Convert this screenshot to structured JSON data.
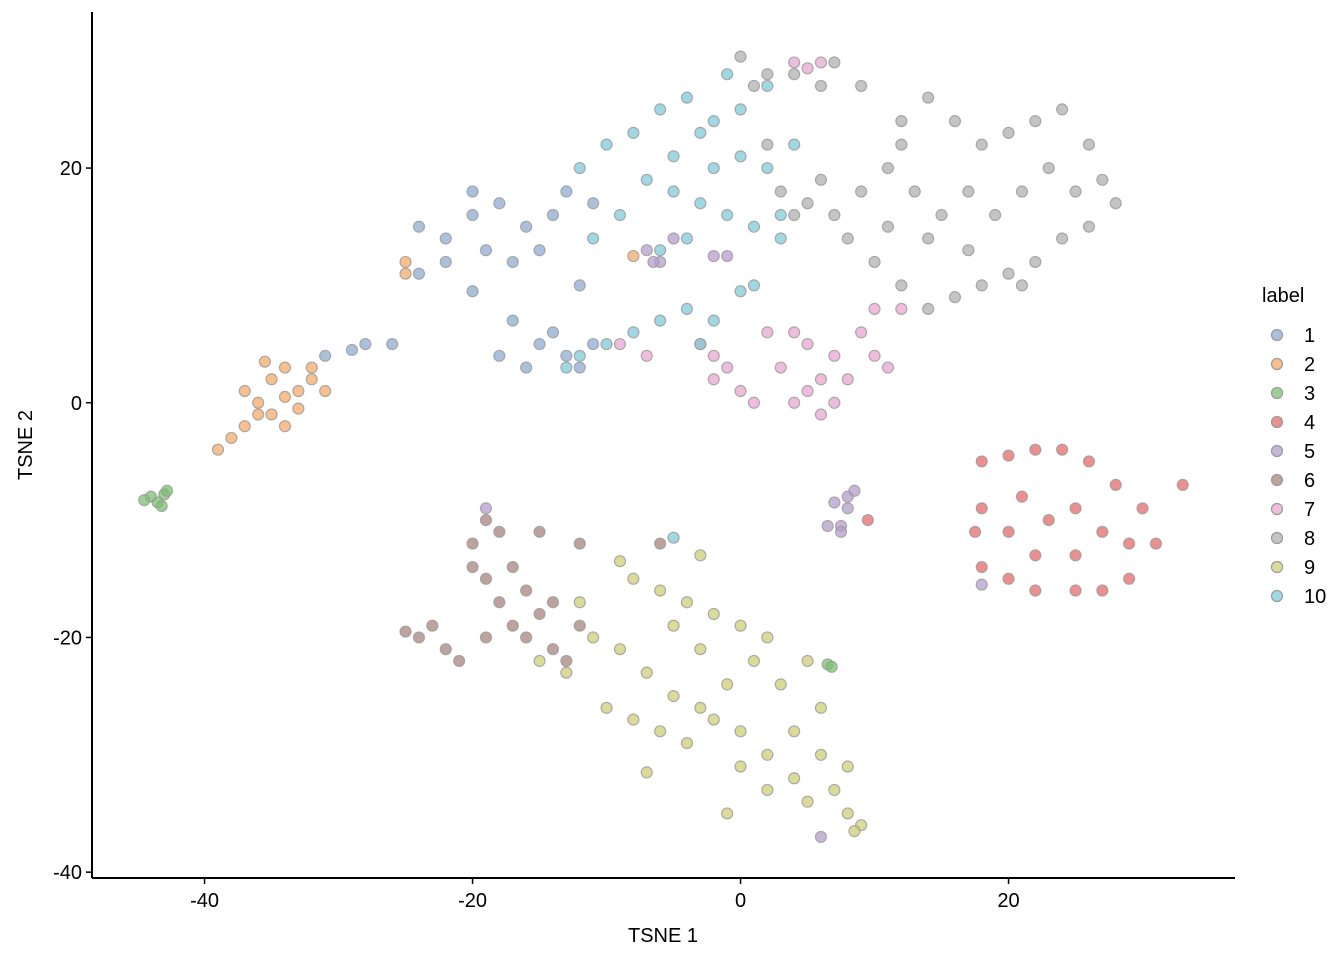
{
  "chart_data": {
    "type": "scatter",
    "x_label": "TSNE 1",
    "y_label": "TSNE 2",
    "legend_title": "label",
    "legend_position": "right",
    "xlim": [
      -48.4,
      36.9
    ],
    "ylim": [
      -40.5,
      33.3
    ],
    "xticks": [
      -40,
      -20,
      0,
      20
    ],
    "yticks": [
      -40,
      -20,
      0,
      20
    ],
    "grid": false,
    "series": [
      {
        "name": "1",
        "color": "#8fabd2",
        "x": [
          -24,
          -22,
          -20,
          -18,
          -16,
          -14,
          -22,
          -19,
          -17,
          -15,
          -24,
          -13,
          -11,
          -20,
          -17,
          -15,
          -13,
          -11,
          -16,
          -14,
          -12,
          -18,
          -28,
          -26,
          -29,
          -31,
          -20,
          -12
        ],
        "values": [
          15,
          14,
          16,
          17,
          15,
          16,
          12,
          13,
          12,
          13,
          11,
          18,
          17,
          18,
          7,
          5,
          4,
          5,
          3,
          6,
          3,
          4,
          5,
          5,
          4.5,
          4,
          9.5,
          10
        ]
      },
      {
        "name": "2",
        "color": "#f5aa6a",
        "x": [
          -37,
          -36,
          -35,
          -34,
          -33,
          -32,
          -35,
          -34,
          -36,
          -33,
          -32,
          -37,
          -38,
          -39,
          -31,
          -25,
          -25,
          -8,
          -34,
          -35.5
        ],
        "values": [
          1,
          0,
          2,
          3,
          1,
          3,
          -1,
          -2,
          -1,
          -0.5,
          2,
          -2,
          -3,
          -4,
          1,
          12,
          11,
          12.5,
          0.5,
          3.5
        ]
      },
      {
        "name": "3",
        "color": "#7cc072",
        "x": [
          -44,
          -43.5,
          -43,
          -44.5,
          -43.2,
          -42.8,
          6.5,
          6.8
        ],
        "values": [
          -8,
          -8.5,
          -7.8,
          -8.3,
          -8.8,
          -7.5,
          -22.3,
          -22.5
        ]
      },
      {
        "name": "4",
        "color": "#e5696a",
        "x": [
          18,
          20,
          22,
          24,
          26,
          28,
          30,
          31,
          29,
          27,
          25,
          22,
          20,
          18,
          17.5,
          18,
          21,
          23,
          25,
          27,
          22,
          20,
          25,
          29,
          33,
          9.5
        ],
        "values": [
          -5,
          -4.5,
          -4,
          -4,
          -5,
          -7,
          -9,
          -12,
          -15,
          -16,
          -16,
          -16,
          -15,
          -14,
          -11,
          -9,
          -8,
          -10,
          -9,
          -11,
          -13,
          -11,
          -13,
          -12,
          -7,
          -10
        ]
      },
      {
        "name": "5",
        "color": "#b59ccd",
        "x": [
          8,
          8,
          7.5,
          6.5,
          7.5,
          8.5,
          -7,
          -6,
          -6.5,
          -5,
          -2,
          -1,
          -19,
          18,
          6,
          7
        ],
        "values": [
          -8,
          -9,
          -10.5,
          -10.5,
          -11,
          -7.5,
          13,
          12,
          12,
          14,
          12.5,
          12.5,
          -9,
          -15.5,
          -37,
          -8.5
        ]
      },
      {
        "name": "6",
        "color": "#a8837c",
        "x": [
          -19,
          -18,
          -20,
          -17,
          -19,
          -18,
          -16,
          -15,
          -14,
          -16,
          -19,
          -17,
          -23,
          -24,
          -22,
          -25,
          -21,
          -13,
          -14,
          -12,
          -15,
          -6,
          -12,
          -20
        ],
        "values": [
          -10,
          -11,
          -12,
          -14,
          -15,
          -17,
          -16,
          -18,
          -17,
          -20,
          -20,
          -19,
          -19,
          -20,
          -21,
          -19.5,
          -22,
          -22,
          -21,
          -12,
          -11,
          -12,
          -19,
          -14
        ]
      },
      {
        "name": "7",
        "color": "#e9a6cf",
        "x": [
          -3,
          -2,
          -1,
          -2,
          0,
          4,
          5,
          6,
          7,
          6,
          8,
          7,
          5,
          4,
          2,
          1,
          10,
          9,
          10,
          12,
          11,
          4,
          5,
          6,
          -7,
          -9,
          3
        ],
        "values": [
          5,
          4,
          3,
          2,
          1,
          0,
          1,
          2,
          0,
          -1,
          2,
          4,
          5,
          6,
          6,
          0,
          4,
          6,
          8,
          8,
          3,
          29,
          28.5,
          29,
          4,
          5,
          3
        ]
      },
      {
        "name": "8",
        "color": "#b0b0b0",
        "x": [
          2,
          4,
          6,
          7,
          9,
          12,
          14,
          16,
          18,
          20,
          22,
          24,
          26,
          27,
          28,
          26,
          24,
          22,
          20,
          18,
          16,
          14,
          12,
          10,
          8,
          7,
          9,
          11,
          13,
          15,
          17,
          19,
          21,
          23,
          25,
          17,
          14,
          11,
          6,
          5,
          3,
          0,
          1,
          21,
          12,
          4,
          2
        ],
        "values": [
          28,
          28,
          27,
          29,
          27,
          24,
          26,
          24,
          22,
          23,
          24,
          25,
          22,
          19,
          17,
          15,
          14,
          12,
          11,
          10,
          9,
          8,
          10,
          12,
          14,
          16,
          18,
          20,
          18,
          16,
          18,
          16,
          18,
          20,
          18,
          13,
          14,
          15,
          19,
          17,
          18,
          29.5,
          27,
          10,
          22,
          16,
          22
        ]
      },
      {
        "name": "9",
        "color": "#cfcf77",
        "x": [
          -9,
          -8,
          -6,
          -4,
          -2,
          0,
          2,
          1,
          -1,
          -3,
          -5,
          -7,
          -9,
          -11,
          -13,
          -15,
          -10,
          -8,
          -6,
          -4,
          -2,
          0,
          2,
          0,
          2,
          4,
          5,
          7,
          8,
          9,
          6,
          8,
          4,
          -7,
          3,
          5,
          -5,
          -3,
          6,
          -3,
          -12,
          8.5,
          -1
        ],
        "values": [
          -13.5,
          -15,
          -16,
          -17,
          -18,
          -19,
          -20,
          -22,
          -24,
          -26,
          -25,
          -23,
          -21,
          -20,
          -23,
          -22,
          -26,
          -27,
          -28,
          -29,
          -27,
          -28,
          -30,
          -31,
          -33,
          -32,
          -34,
          -33,
          -35,
          -36,
          -30,
          -31,
          -28,
          -31.5,
          -24,
          -22,
          -19,
          -21,
          -26,
          -13,
          -17,
          -36.5,
          -35
        ]
      },
      {
        "name": "10",
        "color": "#7fcbd8",
        "x": [
          -12,
          -10,
          -8,
          -6,
          -4,
          -2,
          0,
          2,
          -1,
          -3,
          -5,
          -7,
          -5,
          -3,
          -1,
          1,
          3,
          2,
          0,
          -2,
          -4,
          -6,
          -8,
          -6,
          -4,
          -2,
          -10,
          -12,
          -13,
          -9,
          -11,
          0,
          1,
          -5,
          -3,
          4,
          3
        ],
        "values": [
          20,
          22,
          23,
          25,
          26,
          24,
          25,
          27,
          28,
          23,
          21,
          19,
          18,
          17,
          16,
          15,
          16,
          20,
          21,
          20,
          14,
          13,
          6,
          7,
          8,
          7,
          5,
          4,
          3,
          16,
          14,
          9.5,
          10,
          -11.5,
          5,
          22,
          14
        ]
      }
    ]
  }
}
